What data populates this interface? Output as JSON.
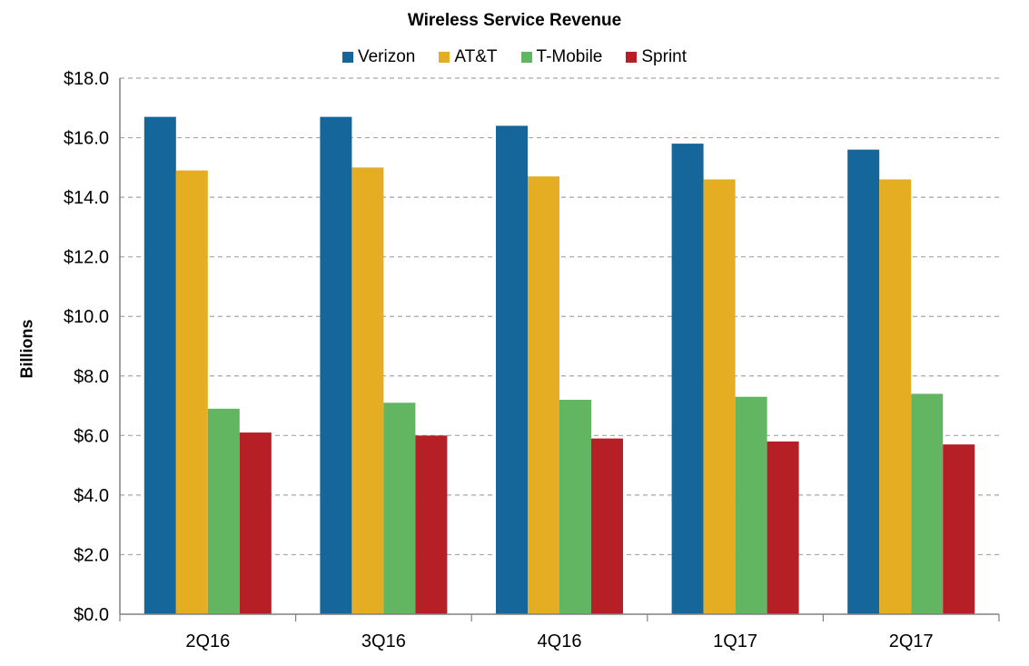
{
  "chart_data": {
    "type": "bar",
    "title": "Wireless Service Revenue",
    "ylabel": "Billions",
    "xlabel": "",
    "categories": [
      "2Q16",
      "3Q16",
      "4Q16",
      "1Q17",
      "2Q17"
    ],
    "series": [
      {
        "name": "Verizon",
        "color": "#15669A",
        "values": [
          16.7,
          16.7,
          16.4,
          15.8,
          15.6
        ]
      },
      {
        "name": "AT&T",
        "color": "#E5AE22",
        "values": [
          14.9,
          15.0,
          14.7,
          14.6,
          14.6
        ]
      },
      {
        "name": "T-Mobile",
        "color": "#62B661",
        "values": [
          6.9,
          7.1,
          7.2,
          7.3,
          7.4
        ]
      },
      {
        "name": "Sprint",
        "color": "#B61F26",
        "values": [
          6.1,
          6.0,
          5.9,
          5.8,
          5.7
        ]
      }
    ],
    "ylim": [
      0,
      18
    ],
    "yticks": [
      "$0.0",
      "$2.0",
      "$4.0",
      "$6.0",
      "$8.0",
      "$10.0",
      "$12.0",
      "$14.0",
      "$16.0",
      "$18.0"
    ],
    "grid": true,
    "legend_position": "top"
  }
}
